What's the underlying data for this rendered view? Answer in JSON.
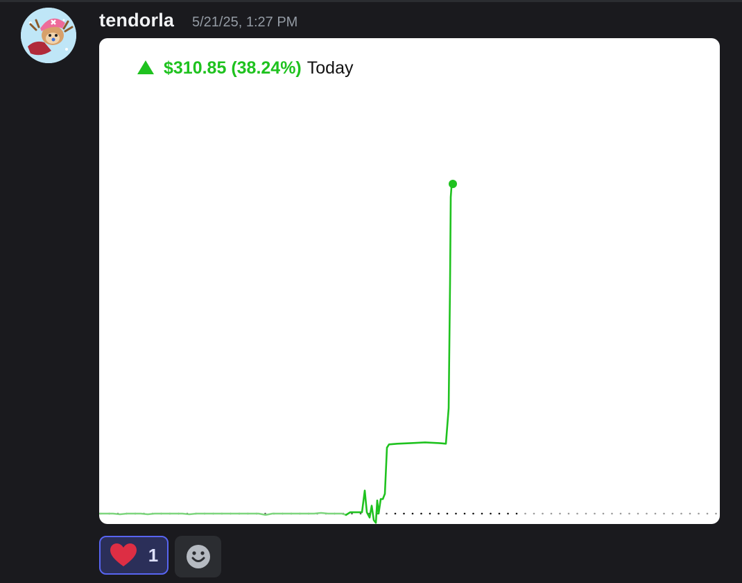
{
  "message": {
    "username": "tendorla",
    "timestamp": "5/21/25, 1:27 PM",
    "avatar_icon": "chopper-avatar"
  },
  "embed": {
    "change_text": "$310.85 (38.24%)",
    "period": "Today",
    "trend_icon": "triangle-up-icon",
    "accent": "#1fc21f"
  },
  "chart_data": {
    "type": "line",
    "title": "",
    "xlabel": "",
    "ylabel": "",
    "baseline": 0,
    "ylim": [
      -0.2,
      5.5
    ],
    "series": [
      {
        "values": [
          [
            0,
            0
          ],
          [
            10,
            0
          ],
          [
            20,
            0
          ],
          [
            30,
            -0.01
          ],
          [
            40,
            0
          ],
          [
            50,
            0
          ],
          [
            60,
            0
          ],
          [
            70,
            -0.01
          ],
          [
            80,
            0
          ],
          [
            90,
            0
          ],
          [
            100,
            0
          ],
          [
            110,
            0
          ],
          [
            120,
            0
          ],
          [
            130,
            -0.01
          ],
          [
            140,
            0
          ],
          [
            150,
            0
          ],
          [
            160,
            0
          ],
          [
            170,
            0
          ],
          [
            180,
            0
          ],
          [
            190,
            0
          ],
          [
            200,
            0
          ],
          [
            210,
            0
          ],
          [
            220,
            0
          ],
          [
            230,
            0
          ],
          [
            240,
            -0.02
          ],
          [
            250,
            0
          ],
          [
            260,
            0
          ],
          [
            270,
            0
          ],
          [
            280,
            0
          ],
          [
            290,
            0
          ],
          [
            300,
            0
          ],
          [
            310,
            0
          ],
          [
            320,
            0.01
          ],
          [
            330,
            0
          ],
          [
            340,
            0
          ],
          [
            350,
            0
          ],
          [
            356,
            -0.02
          ],
          [
            362,
            0.02
          ],
          [
            368,
            0.02
          ],
          [
            375,
            0.02
          ],
          [
            379,
            0.02
          ],
          [
            383,
            0.35
          ],
          [
            386,
            0.02
          ],
          [
            390,
            -0.06
          ],
          [
            393,
            0.12
          ],
          [
            396,
            -0.1
          ],
          [
            399,
            -0.14
          ],
          [
            401,
            0.2
          ],
          [
            403,
            0
          ],
          [
            406,
            0.22
          ],
          [
            409,
            0.22
          ],
          [
            412,
            0.3
          ],
          [
            415,
            1.0
          ],
          [
            418,
            1.05
          ],
          [
            430,
            1.06
          ],
          [
            450,
            1.07
          ],
          [
            470,
            1.08
          ],
          [
            490,
            1.07
          ],
          [
            500,
            1.06
          ],
          [
            504,
            1.6
          ],
          [
            506,
            3.5
          ],
          [
            507,
            4.8
          ],
          [
            508,
            4.95
          ],
          [
            510,
            5.0
          ]
        ]
      }
    ]
  },
  "reactions": [
    {
      "emoji_icon": "heart-icon",
      "count": "1"
    }
  ],
  "add_reaction_icon": "smiley-icon"
}
